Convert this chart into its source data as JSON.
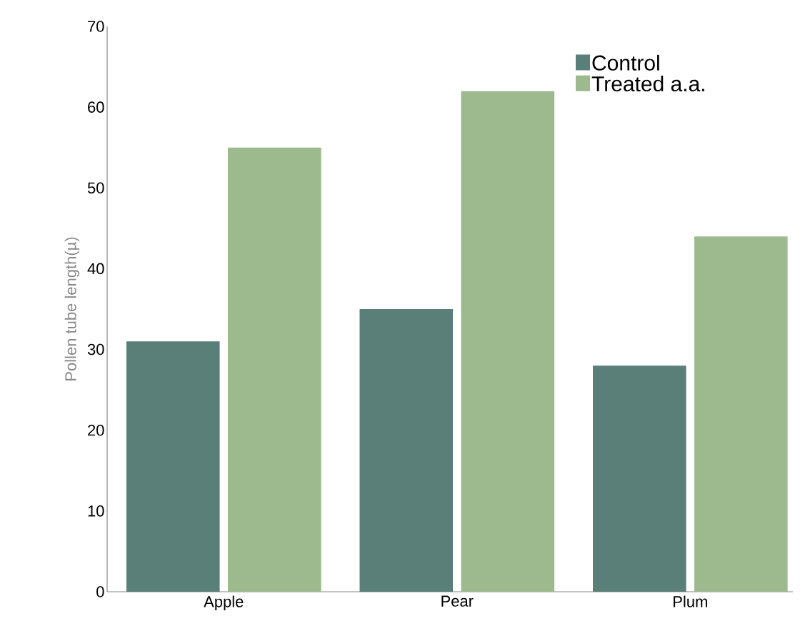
{
  "chart_data": {
    "type": "bar",
    "ylabel": "Pollen tube length(µ)",
    "categories": [
      "Apple",
      "Pear",
      "Plum"
    ],
    "series": [
      {
        "name": "Control",
        "color": "#5a7f78",
        "values": [
          31,
          35,
          28
        ]
      },
      {
        "name": "Treated a.a.",
        "color": "#9dba8e",
        "values": [
          55,
          62,
          44
        ]
      }
    ],
    "ylim": [
      0,
      70
    ],
    "yticks": [
      0,
      10,
      20,
      30,
      40,
      50,
      60,
      70
    ],
    "legend": "top right"
  }
}
